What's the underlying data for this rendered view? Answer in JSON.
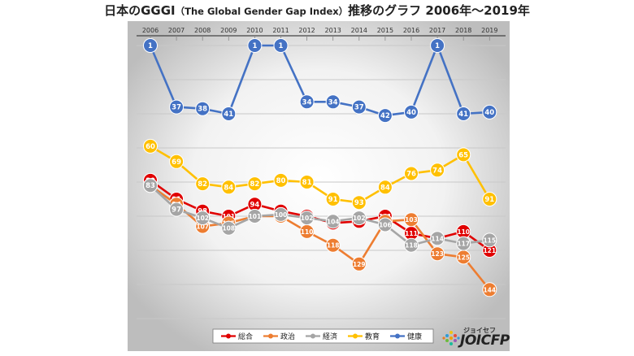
{
  "title": {
    "main_prefix": "日本のGGGI",
    "sub": "（The Global Gender Gap Index）",
    "main_suffix": "推移のグラフ  2006年〜2019年"
  },
  "logo": {
    "kana": "ジョイセフ",
    "word": "JOICFP"
  },
  "chart_data": {
    "type": "line",
    "title": "日本のGGGI（The Global Gender Gap Index）推移のグラフ 2006年〜2019年",
    "x": [
      "2006",
      "2007",
      "2008",
      "2009",
      "2010",
      "2011",
      "2012",
      "2013",
      "2014",
      "2015",
      "2016",
      "2017",
      "2018",
      "2019"
    ],
    "y_inverted": true,
    "grid": true,
    "legend_position": "bottom",
    "series": [
      {
        "name": "総合",
        "color": "#e00000",
        "values": [
          80,
          91,
          98,
          101,
          94,
          98,
          101,
          105,
          104,
          101,
          111,
          114,
          110,
          121
        ]
      },
      {
        "name": "政治",
        "color": "#ed7d31",
        "values": [
          83,
          94,
          107,
          105,
          101,
          101,
          110,
          118,
          129,
          104,
          103,
          123,
          125,
          144
        ]
      },
      {
        "name": "経済",
        "color": "#a5a5a5",
        "values": [
          83,
          97,
          102,
          108,
          101,
          100,
          102,
          104,
          102,
          106,
          118,
          114,
          117,
          115
        ]
      },
      {
        "name": "教育",
        "color": "#ffc000",
        "values": [
          60,
          69,
          82,
          84,
          82,
          80,
          81,
          91,
          93,
          84,
          76,
          74,
          65,
          91
        ]
      },
      {
        "name": "健康",
        "color": "#4472c4",
        "values": [
          1,
          37,
          38,
          41,
          1,
          1,
          34,
          34,
          37,
          42,
          40,
          1,
          41,
          40
        ]
      }
    ]
  }
}
